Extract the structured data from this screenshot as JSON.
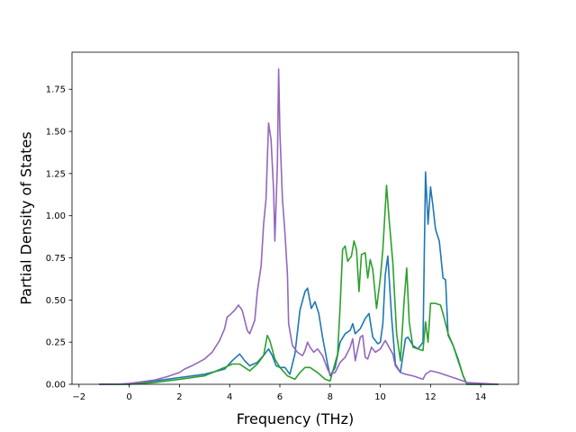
{
  "chart_data": {
    "type": "line",
    "title": "",
    "xlabel": "Frequency (THz)",
    "ylabel": "Partial Density of States",
    "xlim": [
      -2.28,
      15.5
    ],
    "ylim": [
      0.0,
      1.97
    ],
    "xticks": [
      -2,
      0,
      2,
      4,
      6,
      8,
      10,
      12,
      14
    ],
    "xtick_labels": [
      "−2",
      "0",
      "2",
      "4",
      "6",
      "8",
      "10",
      "12",
      "14"
    ],
    "yticks": [
      0.0,
      0.25,
      0.5,
      0.75,
      1.0,
      1.25,
      1.5,
      1.75
    ],
    "ytick_labels": [
      "0.00",
      "0.25",
      "0.50",
      "0.75",
      "1.00",
      "1.25",
      "1.50",
      "1.75"
    ],
    "grid": false,
    "legend": "none",
    "series": [
      {
        "color": "#1f77b4",
        "points": [
          [
            -1.2,
            0
          ],
          [
            0,
            0.0
          ],
          [
            1,
            0.02
          ],
          [
            2,
            0.04
          ],
          [
            3,
            0.06
          ],
          [
            3.8,
            0.09
          ],
          [
            4.1,
            0.14
          ],
          [
            4.4,
            0.18
          ],
          [
            4.6,
            0.14
          ],
          [
            4.8,
            0.11
          ],
          [
            5.1,
            0.13
          ],
          [
            5.4,
            0.18
          ],
          [
            5.55,
            0.21
          ],
          [
            5.7,
            0.17
          ],
          [
            5.85,
            0.11
          ],
          [
            6.0,
            0.1
          ],
          [
            6.2,
            0.1
          ],
          [
            6.4,
            0.06
          ],
          [
            6.6,
            0.18
          ],
          [
            6.8,
            0.44
          ],
          [
            7.0,
            0.55
          ],
          [
            7.1,
            0.57
          ],
          [
            7.25,
            0.45
          ],
          [
            7.4,
            0.49
          ],
          [
            7.55,
            0.42
          ],
          [
            7.7,
            0.28
          ],
          [
            7.9,
            0.12
          ],
          [
            8.0,
            0.05
          ],
          [
            8.2,
            0.1
          ],
          [
            8.4,
            0.25
          ],
          [
            8.6,
            0.3
          ],
          [
            8.8,
            0.32
          ],
          [
            8.9,
            0.36
          ],
          [
            9.0,
            0.3
          ],
          [
            9.2,
            0.33
          ],
          [
            9.4,
            0.39
          ],
          [
            9.55,
            0.42
          ],
          [
            9.7,
            0.28
          ],
          [
            9.9,
            0.24
          ],
          [
            10.0,
            0.25
          ],
          [
            10.1,
            0.36
          ],
          [
            10.2,
            0.65
          ],
          [
            10.3,
            0.76
          ],
          [
            10.45,
            0.4
          ],
          [
            10.6,
            0.12
          ],
          [
            10.8,
            0.07
          ],
          [
            11.0,
            0.27
          ],
          [
            11.1,
            0.28
          ],
          [
            11.3,
            0.23
          ],
          [
            11.5,
            0.21
          ],
          [
            11.7,
            0.25
          ],
          [
            11.8,
            1.26
          ],
          [
            11.9,
            0.95
          ],
          [
            12.0,
            1.17
          ],
          [
            12.1,
            1.05
          ],
          [
            12.2,
            0.92
          ],
          [
            12.35,
            0.85
          ],
          [
            12.5,
            0.63
          ],
          [
            12.6,
            0.62
          ],
          [
            12.7,
            0.29
          ],
          [
            12.9,
            0.23
          ],
          [
            13.1,
            0.15
          ],
          [
            13.3,
            0.05
          ],
          [
            13.45,
            0.0
          ],
          [
            14.7,
            0
          ]
        ]
      },
      {
        "color": "#2ca02c",
        "points": [
          [
            -1.2,
            0
          ],
          [
            0,
            0.0
          ],
          [
            1,
            0.01
          ],
          [
            2,
            0.03
          ],
          [
            3,
            0.05
          ],
          [
            3.8,
            0.1
          ],
          [
            4.1,
            0.12
          ],
          [
            4.4,
            0.12
          ],
          [
            4.6,
            0.1
          ],
          [
            4.8,
            0.08
          ],
          [
            5.1,
            0.12
          ],
          [
            5.35,
            0.17
          ],
          [
            5.5,
            0.29
          ],
          [
            5.6,
            0.26
          ],
          [
            5.8,
            0.15
          ],
          [
            6.0,
            0.1
          ],
          [
            6.3,
            0.05
          ],
          [
            6.6,
            0.03
          ],
          [
            6.8,
            0.07
          ],
          [
            7.0,
            0.1
          ],
          [
            7.2,
            0.1
          ],
          [
            7.5,
            0.07
          ],
          [
            7.8,
            0.03
          ],
          [
            8.0,
            0.02
          ],
          [
            8.3,
            0.18
          ],
          [
            8.4,
            0.46
          ],
          [
            8.5,
            0.8
          ],
          [
            8.6,
            0.82
          ],
          [
            8.7,
            0.73
          ],
          [
            8.85,
            0.76
          ],
          [
            8.95,
            0.85
          ],
          [
            9.05,
            0.8
          ],
          [
            9.15,
            0.55
          ],
          [
            9.25,
            0.77
          ],
          [
            9.4,
            0.78
          ],
          [
            9.5,
            0.63
          ],
          [
            9.6,
            0.74
          ],
          [
            9.7,
            0.68
          ],
          [
            9.85,
            0.45
          ],
          [
            10.0,
            0.63
          ],
          [
            10.1,
            0.8
          ],
          [
            10.25,
            1.18
          ],
          [
            10.35,
            0.98
          ],
          [
            10.5,
            0.72
          ],
          [
            10.65,
            0.3
          ],
          [
            10.8,
            0.14
          ],
          [
            10.95,
            0.5
          ],
          [
            11.05,
            0.69
          ],
          [
            11.15,
            0.37
          ],
          [
            11.3,
            0.22
          ],
          [
            11.5,
            0.21
          ],
          [
            11.7,
            0.2
          ],
          [
            11.8,
            0.37
          ],
          [
            11.9,
            0.25
          ],
          [
            12.0,
            0.48
          ],
          [
            12.2,
            0.48
          ],
          [
            12.4,
            0.47
          ],
          [
            12.55,
            0.39
          ],
          [
            12.7,
            0.3
          ],
          [
            12.9,
            0.23
          ],
          [
            13.1,
            0.14
          ],
          [
            13.3,
            0.05
          ],
          [
            13.45,
            0.0
          ],
          [
            14.7,
            0
          ]
        ]
      },
      {
        "color": "#9467bd",
        "points": [
          [
            -1.2,
            0
          ],
          [
            -0.5,
            0.0
          ],
          [
            0,
            0.005
          ],
          [
            0.5,
            0.015
          ],
          [
            1,
            0.025
          ],
          [
            1.5,
            0.045
          ],
          [
            2,
            0.07
          ],
          [
            2.2,
            0.09
          ],
          [
            2.5,
            0.11
          ],
          [
            3.0,
            0.15
          ],
          [
            3.3,
            0.19
          ],
          [
            3.6,
            0.26
          ],
          [
            3.8,
            0.33
          ],
          [
            3.9,
            0.4
          ],
          [
            4.0,
            0.41
          ],
          [
            4.2,
            0.44
          ],
          [
            4.35,
            0.47
          ],
          [
            4.5,
            0.44
          ],
          [
            4.7,
            0.32
          ],
          [
            4.8,
            0.3
          ],
          [
            5.0,
            0.38
          ],
          [
            5.1,
            0.55
          ],
          [
            5.25,
            0.7
          ],
          [
            5.35,
            0.95
          ],
          [
            5.45,
            1.1
          ],
          [
            5.55,
            1.55
          ],
          [
            5.65,
            1.45
          ],
          [
            5.75,
            1.15
          ],
          [
            5.8,
            0.85
          ],
          [
            5.9,
            1.3
          ],
          [
            5.95,
            1.87
          ],
          [
            6.0,
            1.5
          ],
          [
            6.1,
            1.1
          ],
          [
            6.2,
            0.9
          ],
          [
            6.3,
            0.65
          ],
          [
            6.35,
            0.36
          ],
          [
            6.5,
            0.23
          ],
          [
            6.7,
            0.19
          ],
          [
            6.9,
            0.17
          ],
          [
            7.0,
            0.2
          ],
          [
            7.1,
            0.25
          ],
          [
            7.2,
            0.22
          ],
          [
            7.35,
            0.19
          ],
          [
            7.5,
            0.21
          ],
          [
            7.7,
            0.17
          ],
          [
            7.9,
            0.09
          ],
          [
            8.0,
            0.06
          ],
          [
            8.2,
            0.07
          ],
          [
            8.4,
            0.13
          ],
          [
            8.6,
            0.16
          ],
          [
            8.8,
            0.22
          ],
          [
            8.9,
            0.27
          ],
          [
            9.0,
            0.14
          ],
          [
            9.2,
            0.28
          ],
          [
            9.3,
            0.29
          ],
          [
            9.4,
            0.16
          ],
          [
            9.5,
            0.15
          ],
          [
            9.65,
            0.22
          ],
          [
            9.8,
            0.19
          ],
          [
            10.0,
            0.21
          ],
          [
            10.2,
            0.26
          ],
          [
            10.35,
            0.22
          ],
          [
            10.5,
            0.18
          ],
          [
            10.6,
            0.11
          ],
          [
            10.8,
            0.07
          ],
          [
            11.0,
            0.06
          ],
          [
            11.3,
            0.05
          ],
          [
            11.5,
            0.04
          ],
          [
            11.7,
            0.03
          ],
          [
            11.8,
            0.06
          ],
          [
            11.9,
            0.07
          ],
          [
            12.0,
            0.08
          ],
          [
            12.3,
            0.07
          ],
          [
            12.5,
            0.06
          ],
          [
            12.7,
            0.05
          ],
          [
            12.9,
            0.04
          ],
          [
            13.1,
            0.03
          ],
          [
            13.3,
            0.02
          ],
          [
            13.45,
            0.01
          ],
          [
            14.7,
            0
          ]
        ]
      }
    ]
  }
}
